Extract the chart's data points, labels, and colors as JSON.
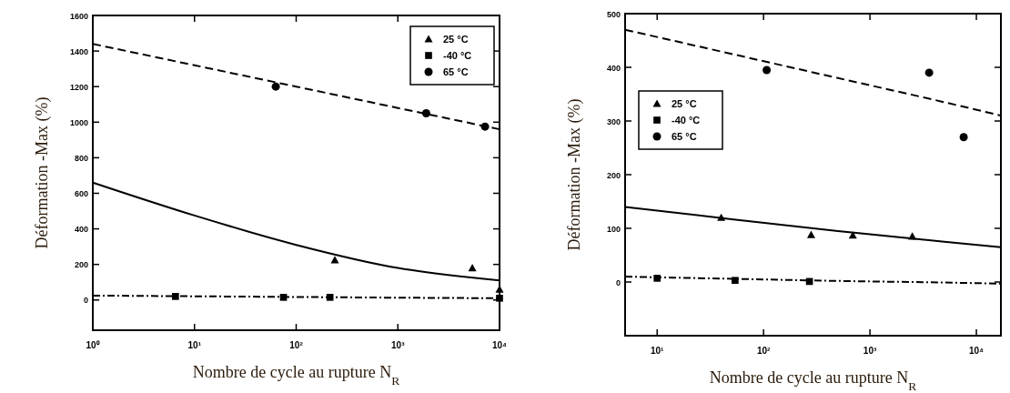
{
  "chart_data": [
    {
      "type": "scatter",
      "xlabel": "Nombre de cycle au rupture N$_{R}$",
      "ylabel": "Déformation -Max (%)",
      "log": "x",
      "legend": "top right",
      "xlim": [
        1,
        10000
      ],
      "xticks": [
        {
          "value": 1,
          "label": "10⁰"
        },
        {
          "value": 10,
          "label": "10¹"
        },
        {
          "value": 100,
          "label": "10²"
        },
        {
          "value": 1000,
          "label": "10³"
        },
        {
          "value": 10000,
          "label": "10⁴"
        }
      ],
      "ylim": [
        -170,
        1600
      ],
      "yticks": [
        0,
        200,
        400,
        600,
        800,
        1000,
        1200,
        1400,
        1600
      ],
      "series": [
        {
          "name": "25 °C",
          "marker": "triangle",
          "color": "#000000",
          "x": [
            240,
            5400,
            10000
          ],
          "values": [
            225,
            180,
            60
          ]
        },
        {
          "name": "-40 °C",
          "marker": "square",
          "color": "#000000",
          "x": [
            6.5,
            75,
            215,
            10000
          ],
          "values": [
            20,
            15,
            15,
            10
          ]
        },
        {
          "name": "65 °C",
          "marker": "circle",
          "color": "#000000",
          "x": [
            63,
            1900,
            7200
          ],
          "values": [
            1200,
            1050,
            975
          ]
        },
        {
          "type": "line",
          "line_style": "solid",
          "color": "#000000",
          "x": [
            1,
            10,
            100,
            1000,
            10000
          ],
          "values": [
            660,
            475,
            310,
            180,
            110
          ]
        },
        {
          "type": "line",
          "line_style": "dotted",
          "color": "#000000",
          "x": [
            1,
            10,
            100,
            1000,
            10000
          ],
          "values": [
            25,
            21,
            17,
            13,
            10
          ]
        },
        {
          "type": "line",
          "line_style": "dashed",
          "color": "#000000",
          "x": [
            1,
            10,
            100,
            1000,
            10000
          ],
          "values": [
            1440,
            1320,
            1200,
            1080,
            960
          ]
        }
      ]
    },
    {
      "type": "scatter",
      "xlabel": "Nombre de cycle au rupture N$_{R}$",
      "ylabel": "Déformation -Max (%)",
      "log": "x",
      "legend": "left",
      "xlim": [
        5,
        17000
      ],
      "xticks": [
        {
          "value": 10,
          "label": "10¹"
        },
        {
          "value": 100,
          "label": "10²"
        },
        {
          "value": 1000,
          "label": "10³"
        },
        {
          "value": 10000,
          "label": "10⁴"
        }
      ],
      "ylim": [
        -100,
        500
      ],
      "yticks": [
        0,
        100,
        200,
        300,
        400,
        500
      ],
      "series": [
        {
          "name": "25 °C",
          "marker": "triangle",
          "color": "#000000",
          "x": [
            40,
            280,
            690,
            2500
          ],
          "values": [
            120,
            88,
            87,
            85
          ]
        },
        {
          "name": "-40 °C",
          "marker": "square",
          "color": "#000000",
          "x": [
            10,
            54,
            270
          ],
          "values": [
            7,
            3,
            1
          ]
        },
        {
          "name": "65 °C",
          "marker": "circle",
          "color": "#000000",
          "x": [
            107,
            3600,
            7600
          ],
          "values": [
            395,
            390,
            270
          ]
        },
        {
          "type": "line",
          "line_style": "solid",
          "color": "#000000",
          "x": [
            5,
            50,
            500,
            5000,
            17000
          ],
          "values": [
            140,
            117,
            95,
            75,
            65
          ]
        },
        {
          "type": "line",
          "line_style": "dotted",
          "color": "#000000",
          "x": [
            5,
            50,
            500,
            5000,
            17000
          ],
          "values": [
            10,
            6,
            2,
            -1,
            -3
          ]
        },
        {
          "type": "line",
          "line_style": "dashed",
          "color": "#000000",
          "x": [
            5,
            50,
            500,
            5000,
            17000
          ],
          "values": [
            470,
            425,
            380,
            335,
            310
          ]
        }
      ]
    }
  ]
}
